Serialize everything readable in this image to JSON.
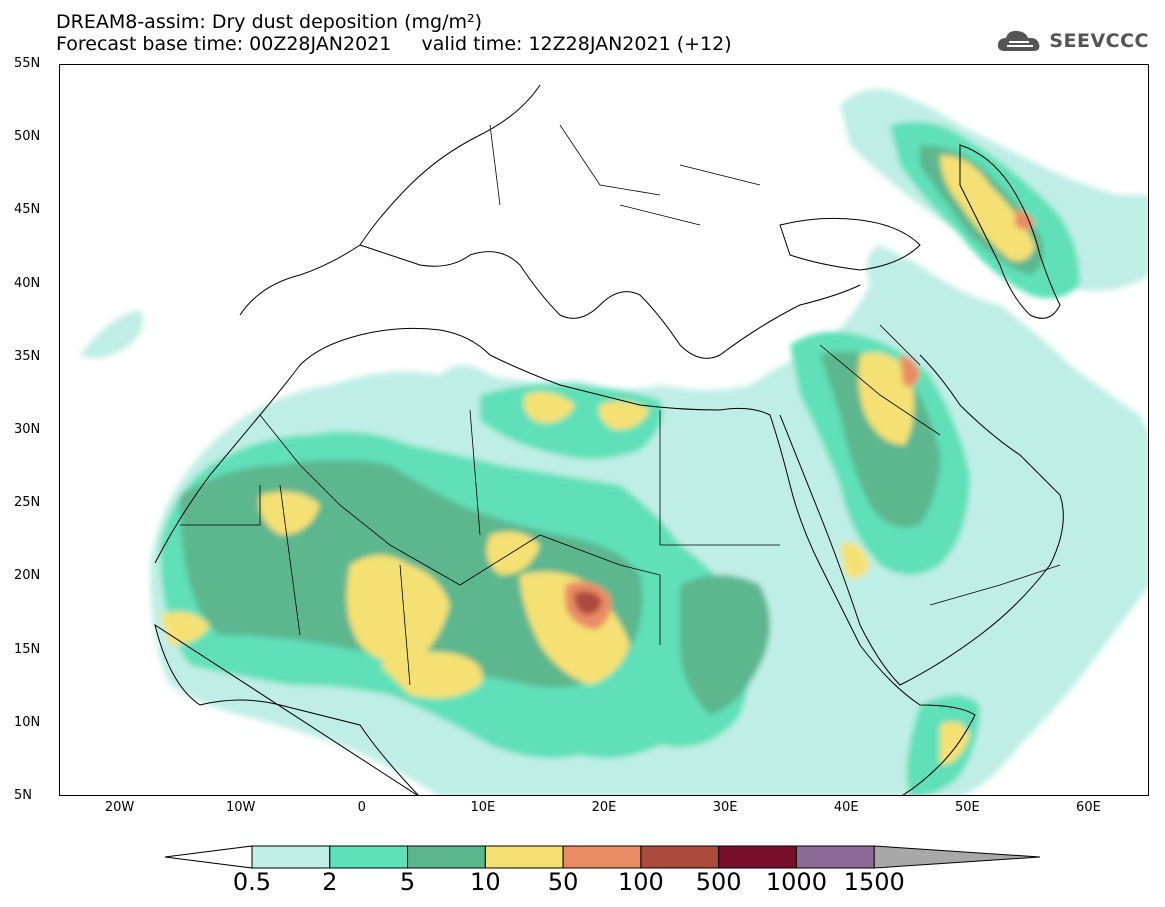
{
  "title": {
    "line1": "DREAM8-assim: Dry dust deposition (mg/m²)",
    "line2": "Forecast base time: 00Z28JAN2021     valid time: 12Z28JAN2021 (+12)"
  },
  "logo": {
    "text": "SEEVCCC"
  },
  "map": {
    "lon_range": [
      -25,
      65
    ],
    "lat_range": [
      5,
      55
    ],
    "lat_ticks": [
      "55N",
      "50N",
      "45N",
      "40N",
      "35N",
      "30N",
      "25N",
      "20N",
      "15N",
      "10N",
      "5N"
    ],
    "lon_ticks": [
      "20W",
      "10W",
      "0",
      "10E",
      "20E",
      "30E",
      "40E",
      "50E",
      "60E"
    ]
  },
  "legend": {
    "labels": [
      "0.5",
      "2",
      "5",
      "10",
      "50",
      "100",
      "500",
      "1000",
      "1500"
    ],
    "colors": [
      "#bfeee6",
      "#5ee0b8",
      "#5bb68e",
      "#f5e173",
      "#ea8c63",
      "#ab4b3c",
      "#7a0f2c",
      "#8c6a98",
      "#a8a8a8"
    ],
    "under_color": "#ffffff"
  }
}
